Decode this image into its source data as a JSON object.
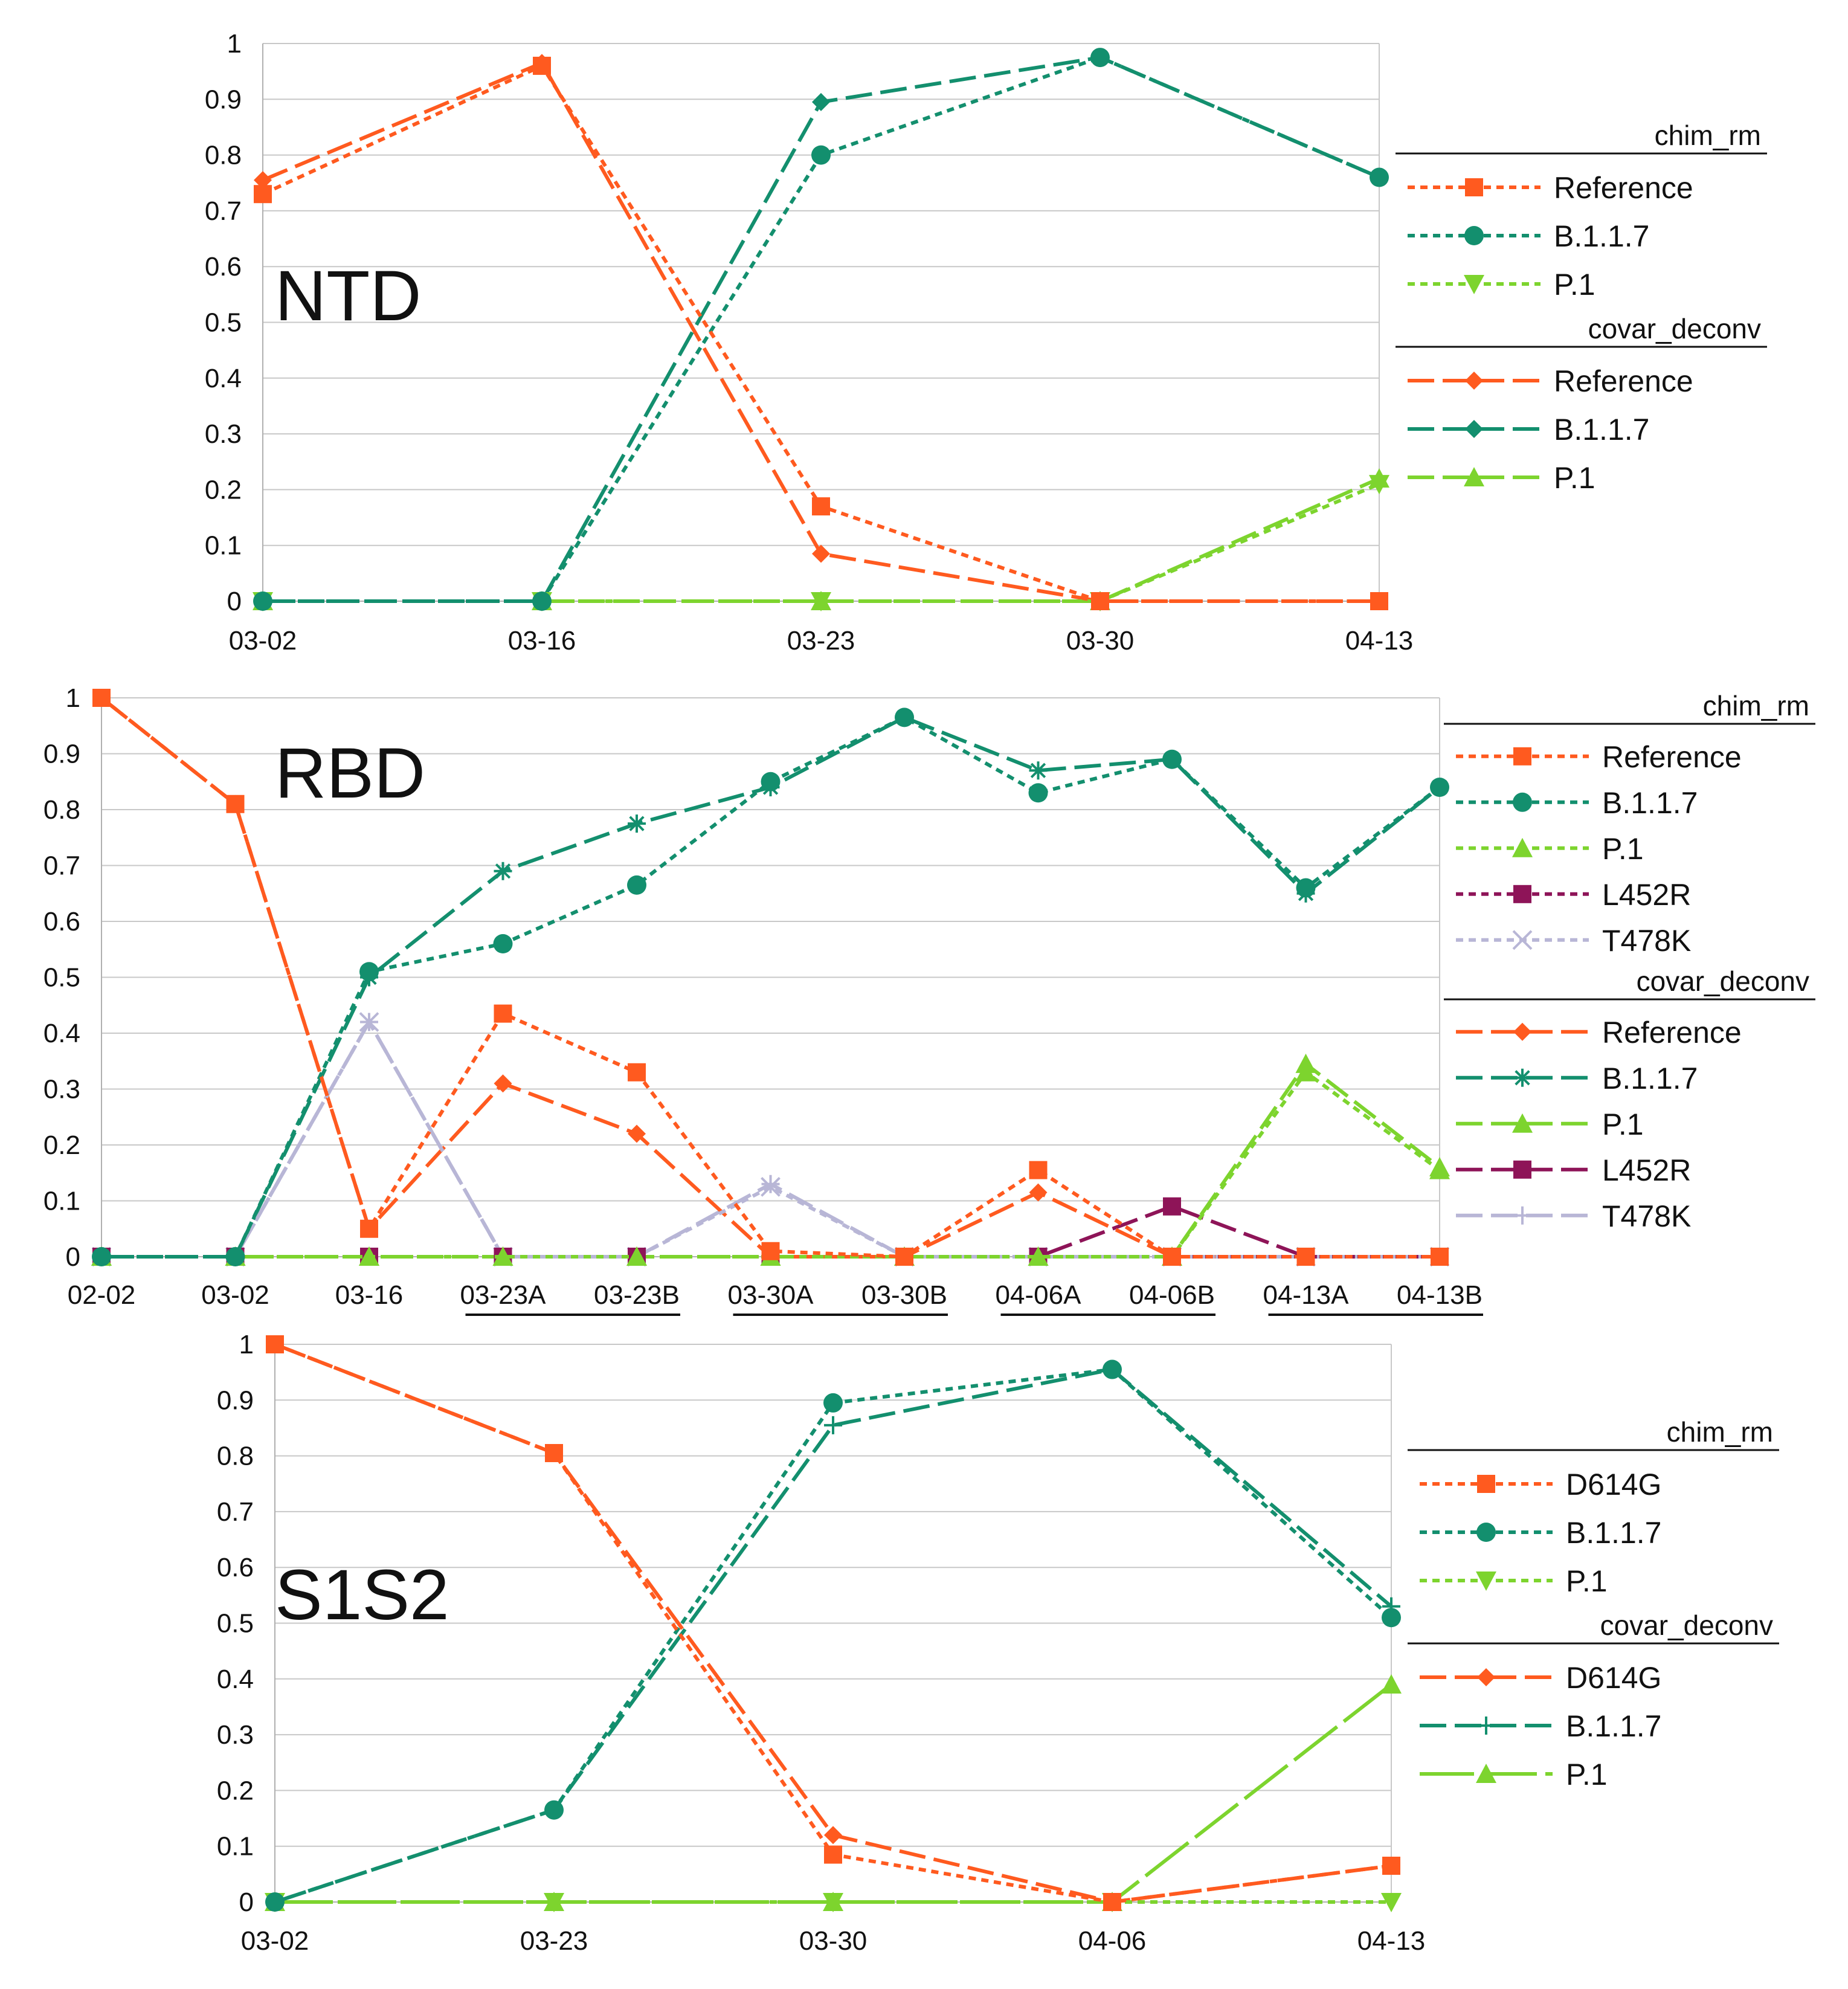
{
  "colors": {
    "reference": "#ff5a1f",
    "b117": "#138f6e",
    "p1": "#7dd42e",
    "l452r": "#8e1458",
    "t478k": "#b8b6d6",
    "grid": "#c8c8c8",
    "axis": "#b0b0b0"
  },
  "chart_data": [
    {
      "type": "line",
      "panel": "NTD",
      "title": "NTD",
      "x": [
        "03-02",
        "03-16",
        "03-23",
        "03-30",
        "04-13"
      ],
      "ylim": [
        0,
        1
      ],
      "yticks": [
        "0",
        "0.1",
        "0.2",
        "0.3",
        "0.4",
        "0.5",
        "0.6",
        "0.7",
        "0.8",
        "0.9",
        "1"
      ],
      "legend_groups": [
        "chim_rm",
        "covar_deconv"
      ],
      "series": [
        {
          "name": "Reference",
          "group": "chim_rm",
          "color": "reference",
          "dash": "short",
          "marker": "square",
          "values": [
            0.73,
            0.96,
            0.17,
            0,
            0
          ]
        },
        {
          "name": "B.1.1.7",
          "group": "chim_rm",
          "color": "b117",
          "dash": "short",
          "marker": "circle",
          "values": [
            0,
            0,
            0.8,
            0.975,
            0.76
          ]
        },
        {
          "name": "P.1",
          "group": "chim_rm",
          "color": "p1",
          "dash": "short",
          "marker": "tri-down",
          "values": [
            0,
            0,
            0,
            0,
            0.21
          ]
        },
        {
          "name": "Reference",
          "group": "covar_deconv",
          "color": "reference",
          "dash": "long",
          "marker": "diamond",
          "values": [
            0.755,
            0.965,
            0.085,
            0,
            0
          ]
        },
        {
          "name": "B.1.1.7",
          "group": "covar_deconv",
          "color": "b117",
          "dash": "long",
          "marker": "diamond",
          "values": [
            0,
            0,
            0.895,
            0.975,
            0.76
          ]
        },
        {
          "name": "P.1",
          "group": "covar_deconv",
          "color": "p1",
          "dash": "long",
          "marker": "tri-up",
          "values": [
            0,
            0,
            0,
            0,
            0.22
          ]
        }
      ]
    },
    {
      "type": "line",
      "panel": "RBD",
      "title": "RBD",
      "x": [
        "02-02",
        "03-02",
        "03-16",
        "03-23A",
        "03-23B",
        "03-30A",
        "03-30B",
        "04-06A",
        "04-06B",
        "04-13A",
        "04-13B"
      ],
      "ylim": [
        0,
        1
      ],
      "yticks": [
        "0",
        "0.1",
        "0.2",
        "0.3",
        "0.4",
        "0.5",
        "0.6",
        "0.7",
        "0.8",
        "0.9",
        "1"
      ],
      "legend_groups": [
        "chim_rm",
        "covar_deconv"
      ],
      "series": [
        {
          "name": "Reference",
          "group": "chim_rm",
          "color": "reference",
          "dash": "short",
          "marker": "square",
          "values": [
            1,
            0.81,
            0.05,
            0.435,
            0.33,
            0.01,
            0,
            0.155,
            0,
            0,
            0
          ]
        },
        {
          "name": "B.1.1.7",
          "group": "chim_rm",
          "color": "b117",
          "dash": "short",
          "marker": "circle",
          "values": [
            0,
            0,
            0.51,
            0.56,
            0.665,
            0.85,
            0.965,
            0.83,
            0.89,
            0.66,
            0.84
          ]
        },
        {
          "name": "P.1",
          "group": "chim_rm",
          "color": "p1",
          "dash": "short",
          "marker": "tri-up",
          "values": [
            0,
            0,
            0,
            0,
            0,
            0,
            0,
            0,
            0,
            0.33,
            0.155
          ]
        },
        {
          "name": "L452R",
          "group": "chim_rm",
          "color": "l452r",
          "dash": "short",
          "marker": "square",
          "values": [
            0,
            0,
            0,
            0,
            0,
            0,
            0,
            0,
            0,
            0,
            0
          ]
        },
        {
          "name": "T478K",
          "group": "chim_rm",
          "color": "t478k",
          "dash": "short",
          "marker": "x",
          "values": [
            0,
            0,
            0.42,
            0,
            0,
            0.125,
            0,
            0,
            0,
            0,
            0
          ]
        },
        {
          "name": "Reference",
          "group": "covar_deconv",
          "color": "reference",
          "dash": "long",
          "marker": "diamond",
          "values": [
            1,
            0.81,
            0.05,
            0.31,
            0.22,
            0,
            0,
            0.115,
            0,
            0,
            0
          ]
        },
        {
          "name": "B.1.1.7",
          "group": "covar_deconv",
          "color": "b117",
          "dash": "long",
          "marker": "star",
          "values": [
            0,
            0,
            0.5,
            0.69,
            0.775,
            0.84,
            0.965,
            0.87,
            0.89,
            0.65,
            0.84
          ]
        },
        {
          "name": "P.1",
          "group": "covar_deconv",
          "color": "p1",
          "dash": "long",
          "marker": "tri-up",
          "values": [
            0,
            0,
            0,
            0,
            0,
            0,
            0,
            0,
            0,
            0.345,
            0.16
          ]
        },
        {
          "name": "L452R",
          "group": "covar_deconv",
          "color": "l452r",
          "dash": "long",
          "marker": "square",
          "values": [
            0,
            0,
            0,
            0,
            0,
            0,
            0,
            0,
            0.09,
            0,
            0
          ]
        },
        {
          "name": "T478K",
          "group": "covar_deconv",
          "color": "t478k",
          "dash": "long",
          "marker": "plus",
          "values": [
            0,
            0,
            0.42,
            0,
            0,
            0.13,
            0,
            0,
            0,
            0,
            0
          ]
        }
      ]
    },
    {
      "type": "line",
      "panel": "S1S2",
      "title": "S1S2",
      "x": [
        "03-02",
        "03-23",
        "03-30",
        "04-06",
        "04-13"
      ],
      "ylim": [
        0,
        1
      ],
      "yticks": [
        "0",
        "0.1",
        "0.2",
        "0.3",
        "0.4",
        "0.5",
        "0.6",
        "0.7",
        "0.8",
        "0.9",
        "1"
      ],
      "legend_groups": [
        "chim_rm",
        "covar_deconv"
      ],
      "series": [
        {
          "name": "D614G",
          "group": "chim_rm",
          "color": "reference",
          "dash": "short",
          "marker": "square",
          "values": [
            1,
            0.805,
            0.085,
            0,
            0.065
          ]
        },
        {
          "name": "B.1.1.7",
          "group": "chim_rm",
          "color": "b117",
          "dash": "short",
          "marker": "circle",
          "values": [
            0,
            0.165,
            0.895,
            0.955,
            0.51
          ]
        },
        {
          "name": "P.1",
          "group": "chim_rm",
          "color": "p1",
          "dash": "short",
          "marker": "tri-down",
          "values": [
            0,
            0,
            0,
            0,
            0
          ]
        },
        {
          "name": "D614G",
          "group": "covar_deconv",
          "color": "reference",
          "dash": "long",
          "marker": "diamond",
          "values": [
            1,
            0.805,
            0.12,
            0,
            0.065
          ]
        },
        {
          "name": "B.1.1.7",
          "group": "covar_deconv",
          "color": "b117",
          "dash": "long",
          "marker": "plus",
          "values": [
            0,
            0.165,
            0.855,
            0.955,
            0.53
          ]
        },
        {
          "name": "P.1",
          "group": "covar_deconv",
          "color": "p1",
          "dash": "longsolid",
          "marker": "tri-up",
          "values": [
            0,
            0,
            0,
            0,
            0.39
          ]
        }
      ]
    }
  ]
}
